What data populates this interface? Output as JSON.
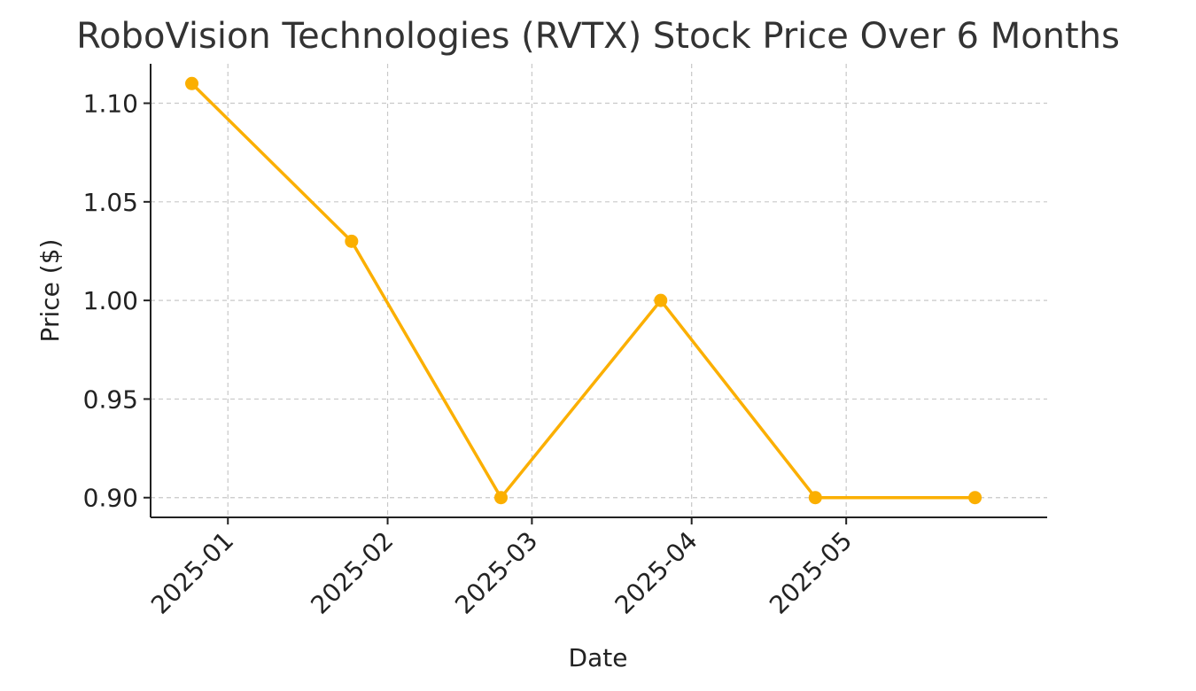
{
  "chart_data": {
    "type": "line",
    "title": "RoboVision Technologies (RVTX) Stock Price Over 6 Months",
    "xlabel": "Date",
    "ylabel": "Price ($)",
    "x_ticks": [
      "2025-01",
      "2025-02",
      "2025-03",
      "2025-04",
      "2025-05"
    ],
    "x_tick_dates": [
      "2025-01-01",
      "2025-02-01",
      "2025-03-01",
      "2025-04-01",
      "2025-05-01"
    ],
    "y_ticks": [
      "0.90",
      "0.95",
      "1.00",
      "1.05",
      "1.10"
    ],
    "y_tick_values": [
      0.9,
      0.95,
      1.0,
      1.05,
      1.1
    ],
    "xlim": [
      "2024-12-17",
      "2025-06-09"
    ],
    "ylim": [
      0.89,
      1.12
    ],
    "grid": true,
    "series": [
      {
        "color": "#FBAF00",
        "points": [
          {
            "date": "2024-12-25",
            "value": 1.11
          },
          {
            "date": "2025-01-25",
            "value": 1.03
          },
          {
            "date": "2025-02-23",
            "value": 0.9
          },
          {
            "date": "2025-03-26",
            "value": 1.0
          },
          {
            "date": "2025-04-25",
            "value": 0.9
          },
          {
            "date": "2025-05-26",
            "value": 0.9
          }
        ]
      }
    ]
  }
}
